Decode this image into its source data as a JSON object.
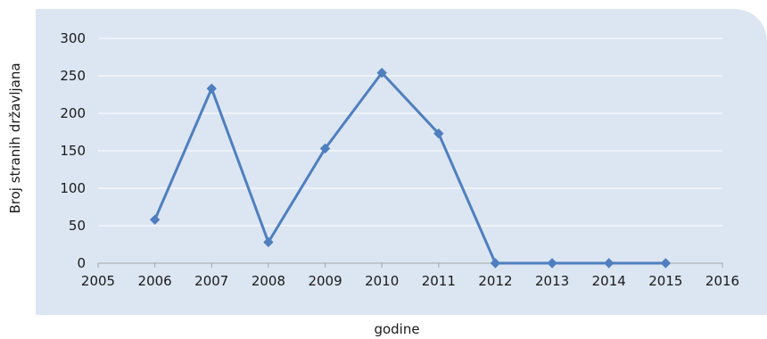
{
  "chart_data": {
    "type": "line",
    "xlabel": "godine",
    "ylabel": "Broj stranih državljana",
    "xlim": [
      2005,
      2016
    ],
    "ylim": [
      0,
      300
    ],
    "x_ticks": [
      2005,
      2006,
      2007,
      2008,
      2009,
      2010,
      2011,
      2012,
      2013,
      2014,
      2015,
      2016
    ],
    "y_ticks": [
      0,
      50,
      100,
      150,
      200,
      250,
      300
    ],
    "grid": "horizontal",
    "legend": "none",
    "series": [
      {
        "x": [
          2006,
          2007,
          2008,
          2009,
          2010,
          2011,
          2012,
          2013,
          2014,
          2015
        ],
        "values": [
          58,
          233,
          28,
          153,
          254,
          173,
          0,
          0,
          0,
          0
        ],
        "color": "#4f7fbf",
        "marker": "diamond"
      }
    ],
    "colors": {
      "panel_background": "#dce6f2",
      "gridline": "#ffffff",
      "line": "#4f7fbf",
      "marker": "#4f7fbf"
    }
  }
}
